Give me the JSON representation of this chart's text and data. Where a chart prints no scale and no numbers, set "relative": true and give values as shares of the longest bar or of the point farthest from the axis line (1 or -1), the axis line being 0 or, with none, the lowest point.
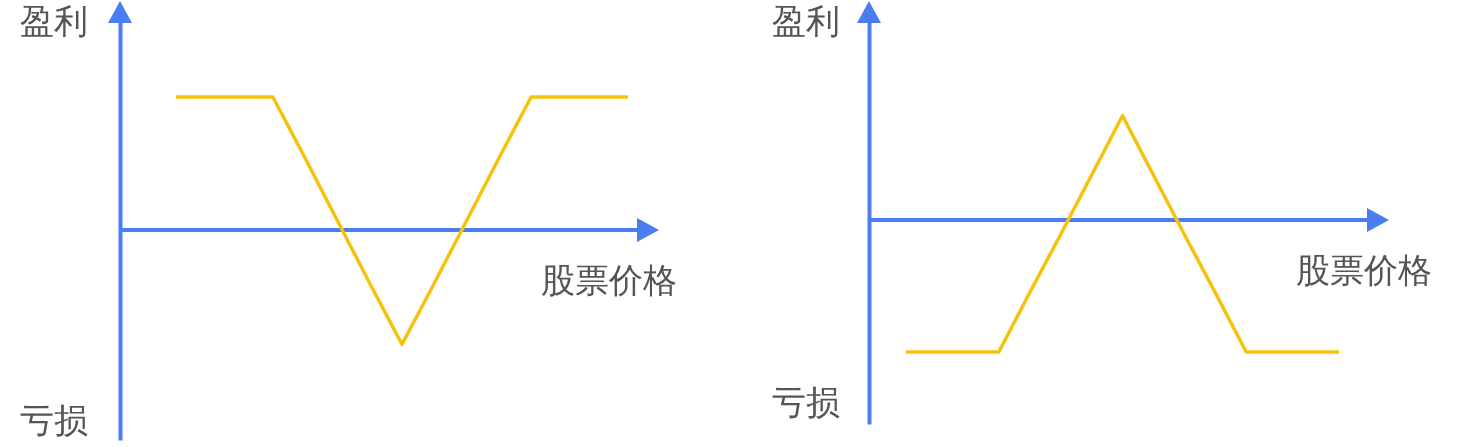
{
  "chart_data": [
    {
      "type": "line",
      "relative": true,
      "categories": [
        null,
        null,
        null,
        null,
        null,
        null,
        null,
        null,
        null,
        null,
        null,
        null,
        null,
        null,
        null
      ],
      "series": [
        {
          "color": "#f5c30f",
          "values": [
            1,
            1,
            1,
            1,
            0.54,
            0.07,
            -0.4,
            -0.86,
            -0.4,
            0.07,
            0.54,
            1,
            1,
            1,
            1
          ]
        }
      ],
      "ref_lines": [
        {
          "axis": "y",
          "value": 0,
          "color": "#4a7def"
        }
      ],
      "xlabel": "股票价格",
      "annotations": [
        "盈利",
        "亏损"
      ]
    },
    {
      "type": "line",
      "relative": true,
      "categories": [
        null,
        null,
        null,
        null,
        null,
        null,
        null,
        null,
        null,
        null,
        null,
        null,
        null,
        null,
        null
      ],
      "series": [
        {
          "color": "#f5c30f",
          "values": [
            -1,
            -1,
            -1,
            -1,
            -0.55,
            -0.11,
            0.34,
            0.79,
            0.34,
            -0.11,
            -0.55,
            -1,
            -1,
            -1,
            -1
          ]
        }
      ],
      "ref_lines": [
        {
          "axis": "y",
          "value": 0,
          "color": "#4a7def"
        }
      ],
      "xlabel": "股票价格",
      "annotations": [
        "盈利",
        "亏损"
      ]
    }
  ]
}
